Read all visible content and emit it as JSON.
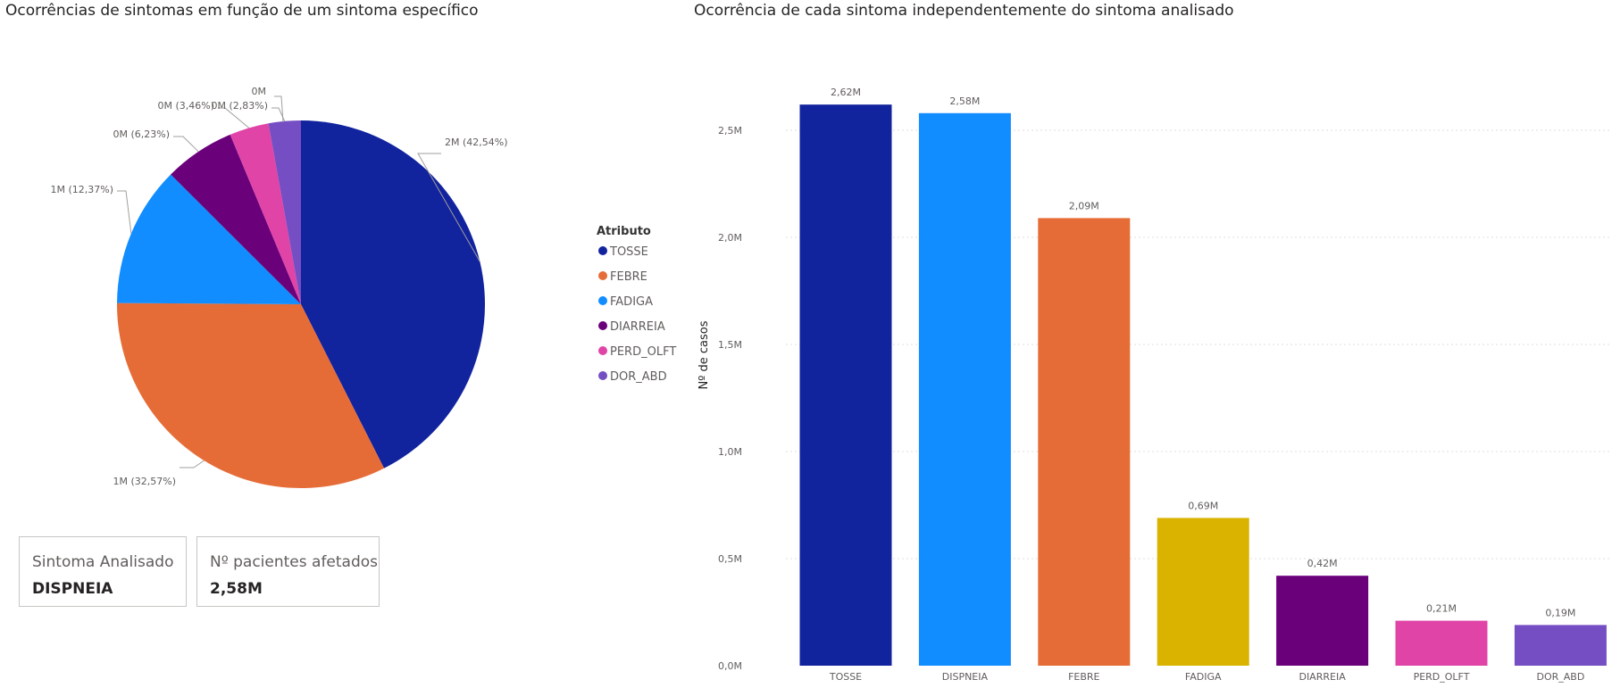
{
  "pie_title": "Ocorrências de sintomas em função de um sintoma específico",
  "bar_title": "Ocorrência de cada sintoma independentemente do sintoma analisado",
  "legend": {
    "title": "Atributo",
    "items": [
      {
        "label": "TOSSE",
        "color": "#12239E"
      },
      {
        "label": "FEBRE",
        "color": "#E66C37"
      },
      {
        "label": "FADIGA",
        "color": "#118DFF"
      },
      {
        "label": "DIARREIA",
        "color": "#6B007B"
      },
      {
        "label": "PERD_OLFT",
        "color": "#E044A7"
      },
      {
        "label": "DOR_ABD",
        "color": "#744EC2"
      }
    ]
  },
  "cards": [
    {
      "label": "Sintoma Analisado",
      "value": "DISPNEIA"
    },
    {
      "label": "Nº pacientes afetados",
      "value": "2,58M"
    }
  ],
  "chart_data": [
    {
      "type": "pie",
      "title": "Ocorrências de sintomas em função de um sintoma específico",
      "slices": [
        {
          "name": "TOSSE",
          "percent": 42.54,
          "label": "2M (42,54%)",
          "color": "#12239E"
        },
        {
          "name": "FEBRE",
          "percent": 32.57,
          "label": "1M (32,57%)",
          "color": "#E66C37"
        },
        {
          "name": "FADIGA",
          "percent": 12.37,
          "label": "1M (12,37%)",
          "color": "#118DFF"
        },
        {
          "name": "DIARREIA",
          "percent": 6.23,
          "label": "0M (6,23%)",
          "color": "#6B007B"
        },
        {
          "name": "PERD_OLFT",
          "percent": 3.46,
          "label": "0M (3,46%)",
          "color": "#E044A7"
        },
        {
          "name": "DOR_ABD",
          "percent": 2.83,
          "label": "0M (2,83%)",
          "color": "#744EC2"
        }
      ],
      "extra_label": "0M"
    },
    {
      "type": "bar",
      "title": "Ocorrência de cada sintoma independentemente do sintoma analisado",
      "ylabel": "Nº de casos",
      "ylim": [
        0,
        2.9
      ],
      "yticks": [
        {
          "value": 0,
          "label": "0,0M"
        },
        {
          "value": 0.5,
          "label": "0,5M"
        },
        {
          "value": 1.0,
          "label": "1,0M"
        },
        {
          "value": 1.5,
          "label": "1,5M"
        },
        {
          "value": 2.0,
          "label": "2,0M"
        },
        {
          "value": 2.5,
          "label": "2,5M"
        }
      ],
      "grid": true,
      "categories": [
        "TOSSE",
        "DISPNEIA",
        "FEBRE",
        "FADIGA",
        "DIARREIA",
        "PERD_OLFT",
        "DOR_ABD"
      ],
      "values": [
        2.62,
        2.58,
        2.09,
        0.69,
        0.42,
        0.21,
        0.19
      ],
      "value_labels": [
        "2,62M",
        "2,58M",
        "2,09M",
        "0,69M",
        "0,42M",
        "0,21M",
        "0,19M"
      ],
      "colors": [
        "#12239E",
        "#118DFF",
        "#E66C37",
        "#D9B300",
        "#6B007B",
        "#E044A7",
        "#744EC2"
      ]
    }
  ]
}
